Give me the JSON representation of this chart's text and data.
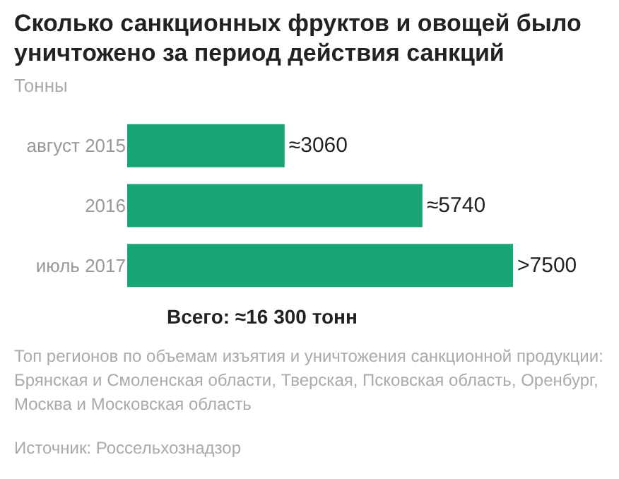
{
  "chart_data": {
    "type": "bar",
    "orientation": "horizontal",
    "title": "Сколько санкционных фруктов и овощей было уничтожено за период действия санкций",
    "subtitle": "Тонны",
    "categories": [
      "август 2015",
      "2016",
      "июль 2017"
    ],
    "values": [
      3060,
      5740,
      7500
    ],
    "value_labels": [
      "≈3060",
      "≈5740",
      ">7500"
    ],
    "color": "#17a673",
    "annotations": [
      "Всего: ≈16 300 тонн",
      "Топ регионов по объемам изъятия и уничтожения санкционной продукции: Брянская и Смоленская области, Тверская, Псковская область, Оренбург, Москва и Московская область",
      "Источник: Россельхознадзор"
    ],
    "legend": false
  }
}
